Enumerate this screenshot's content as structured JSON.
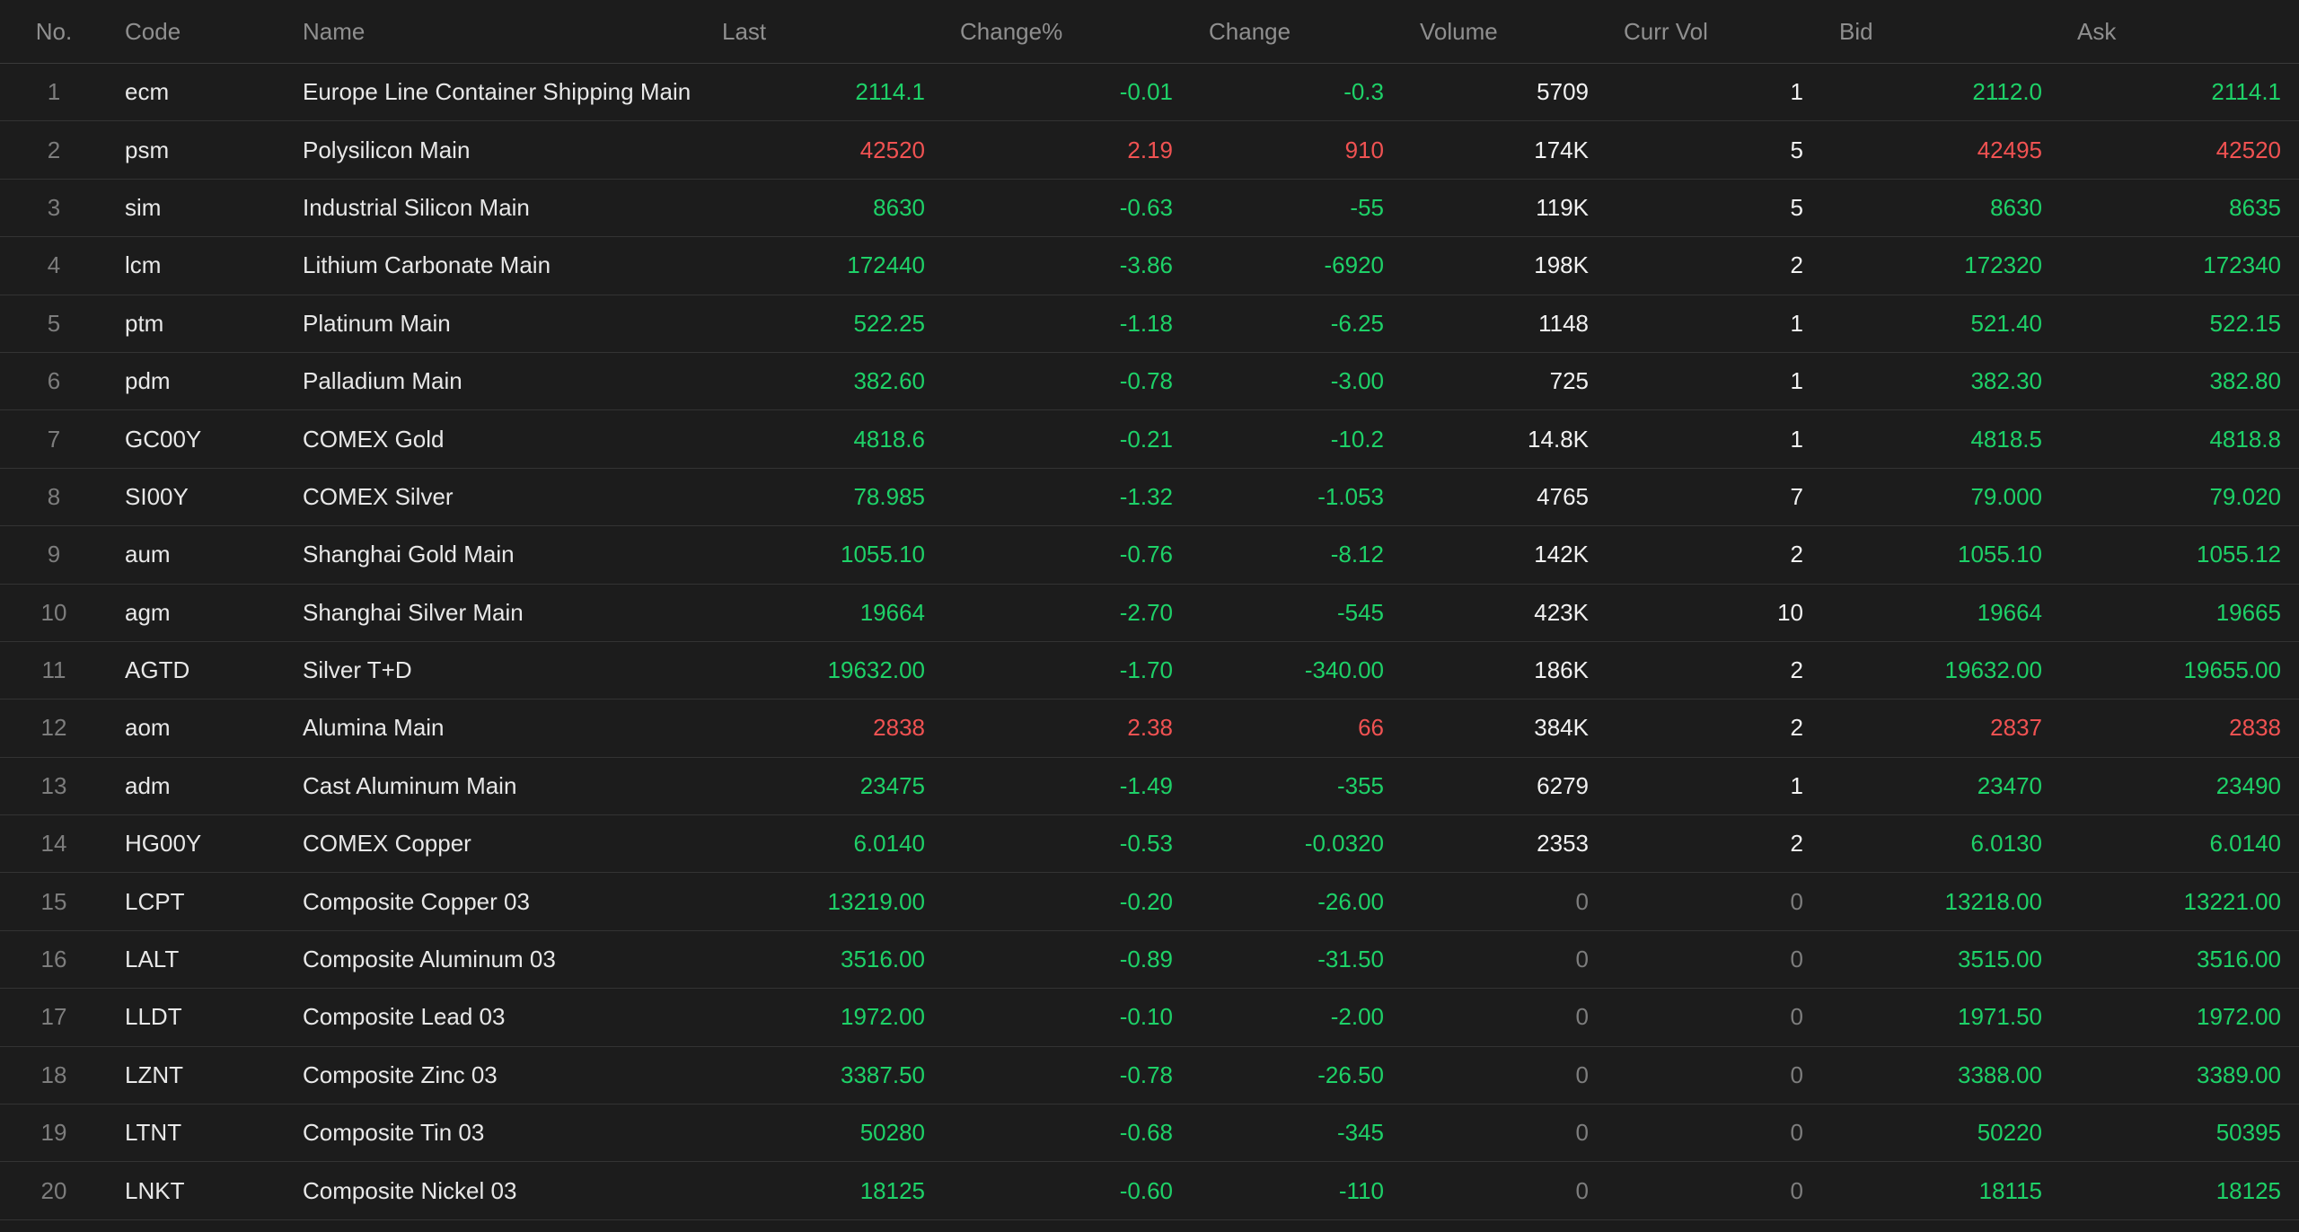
{
  "colors": {
    "background": "#1b1b1b",
    "header_text": "#8f8f8f",
    "up": "#f05252",
    "down": "#1ed168",
    "index": "#7d7d7d",
    "text": "#e8e8e8"
  },
  "headers": {
    "no": "No.",
    "code": "Code",
    "name": "Name",
    "last": "Last",
    "change_pct": "Change%",
    "change": "Change",
    "volume": "Volume",
    "curr_vol": "Curr Vol",
    "bid": "Bid",
    "ask": "Ask"
  },
  "rows": [
    {
      "no": "1",
      "code": "ecm",
      "name": "Europe Line Container Shipping Main",
      "last": "2114.1",
      "change_pct": "-0.01",
      "change": "-0.3",
      "volume": "5709",
      "curr_vol": "1",
      "bid": "2112.0",
      "ask": "2114.1",
      "dir": "down"
    },
    {
      "no": "2",
      "code": "psm",
      "name": "Polysilicon Main",
      "last": "42520",
      "change_pct": "2.19",
      "change": "910",
      "volume": "174K",
      "curr_vol": "5",
      "bid": "42495",
      "ask": "42520",
      "dir": "up"
    },
    {
      "no": "3",
      "code": "sim",
      "name": "Industrial Silicon Main",
      "last": "8630",
      "change_pct": "-0.63",
      "change": "-55",
      "volume": "119K",
      "curr_vol": "5",
      "bid": "8630",
      "ask": "8635",
      "dir": "down"
    },
    {
      "no": "4",
      "code": "lcm",
      "name": "Lithium Carbonate Main",
      "last": "172440",
      "change_pct": "-3.86",
      "change": "-6920",
      "volume": "198K",
      "curr_vol": "2",
      "bid": "172320",
      "ask": "172340",
      "dir": "down"
    },
    {
      "no": "5",
      "code": "ptm",
      "name": "Platinum Main",
      "last": "522.25",
      "change_pct": "-1.18",
      "change": "-6.25",
      "volume": "1148",
      "curr_vol": "1",
      "bid": "521.40",
      "ask": "522.15",
      "dir": "down"
    },
    {
      "no": "6",
      "code": "pdm",
      "name": "Palladium Main",
      "last": "382.60",
      "change_pct": "-0.78",
      "change": "-3.00",
      "volume": "725",
      "curr_vol": "1",
      "bid": "382.30",
      "ask": "382.80",
      "dir": "down"
    },
    {
      "no": "7",
      "code": "GC00Y",
      "name": "COMEX Gold",
      "last": "4818.6",
      "change_pct": "-0.21",
      "change": "-10.2",
      "volume": "14.8K",
      "curr_vol": "1",
      "bid": "4818.5",
      "ask": "4818.8",
      "dir": "down"
    },
    {
      "no": "8",
      "code": "SI00Y",
      "name": "COMEX Silver",
      "last": "78.985",
      "change_pct": "-1.32",
      "change": "-1.053",
      "volume": "4765",
      "curr_vol": "7",
      "bid": "79.000",
      "ask": "79.020",
      "dir": "down"
    },
    {
      "no": "9",
      "code": "aum",
      "name": "Shanghai Gold Main",
      "last": "1055.10",
      "change_pct": "-0.76",
      "change": "-8.12",
      "volume": "142K",
      "curr_vol": "2",
      "bid": "1055.10",
      "ask": "1055.12",
      "dir": "down"
    },
    {
      "no": "10",
      "code": "agm",
      "name": "Shanghai Silver Main",
      "last": "19664",
      "change_pct": "-2.70",
      "change": "-545",
      "volume": "423K",
      "curr_vol": "10",
      "bid": "19664",
      "ask": "19665",
      "dir": "down"
    },
    {
      "no": "11",
      "code": "AGTD",
      "name": "Silver T+D",
      "last": "19632.00",
      "change_pct": "-1.70",
      "change": "-340.00",
      "volume": "186K",
      "curr_vol": "2",
      "bid": "19632.00",
      "ask": "19655.00",
      "dir": "down"
    },
    {
      "no": "12",
      "code": "aom",
      "name": "Alumina Main",
      "last": "2838",
      "change_pct": "2.38",
      "change": "66",
      "volume": "384K",
      "curr_vol": "2",
      "bid": "2837",
      "ask": "2838",
      "dir": "up"
    },
    {
      "no": "13",
      "code": "adm",
      "name": "Cast Aluminum Main",
      "last": "23475",
      "change_pct": "-1.49",
      "change": "-355",
      "volume": "6279",
      "curr_vol": "1",
      "bid": "23470",
      "ask": "23490",
      "dir": "down"
    },
    {
      "no": "14",
      "code": "HG00Y",
      "name": "COMEX Copper",
      "last": "6.0140",
      "change_pct": "-0.53",
      "change": "-0.0320",
      "volume": "2353",
      "curr_vol": "2",
      "bid": "6.0130",
      "ask": "6.0140",
      "dir": "down"
    },
    {
      "no": "15",
      "code": "LCPT",
      "name": "Composite Copper 03",
      "last": "13219.00",
      "change_pct": "-0.20",
      "change": "-26.00",
      "volume": "0",
      "curr_vol": "0",
      "bid": "13218.00",
      "ask": "13221.00",
      "dir": "down"
    },
    {
      "no": "16",
      "code": "LALT",
      "name": "Composite Aluminum 03",
      "last": "3516.00",
      "change_pct": "-0.89",
      "change": "-31.50",
      "volume": "0",
      "curr_vol": "0",
      "bid": "3515.00",
      "ask": "3516.00",
      "dir": "down"
    },
    {
      "no": "17",
      "code": "LLDT",
      "name": "Composite Lead 03",
      "last": "1972.00",
      "change_pct": "-0.10",
      "change": "-2.00",
      "volume": "0",
      "curr_vol": "0",
      "bid": "1971.50",
      "ask": "1972.00",
      "dir": "down"
    },
    {
      "no": "18",
      "code": "LZNT",
      "name": "Composite Zinc 03",
      "last": "3387.50",
      "change_pct": "-0.78",
      "change": "-26.50",
      "volume": "0",
      "curr_vol": "0",
      "bid": "3388.00",
      "ask": "3389.00",
      "dir": "down"
    },
    {
      "no": "19",
      "code": "LTNT",
      "name": "Composite Tin 03",
      "last": "50280",
      "change_pct": "-0.68",
      "change": "-345",
      "volume": "0",
      "curr_vol": "0",
      "bid": "50220",
      "ask": "50395",
      "dir": "down"
    },
    {
      "no": "20",
      "code": "LNKT",
      "name": "Composite Nickel 03",
      "last": "18125",
      "change_pct": "-0.60",
      "change": "-110",
      "volume": "0",
      "curr_vol": "0",
      "bid": "18115",
      "ask": "18125",
      "dir": "down"
    }
  ]
}
